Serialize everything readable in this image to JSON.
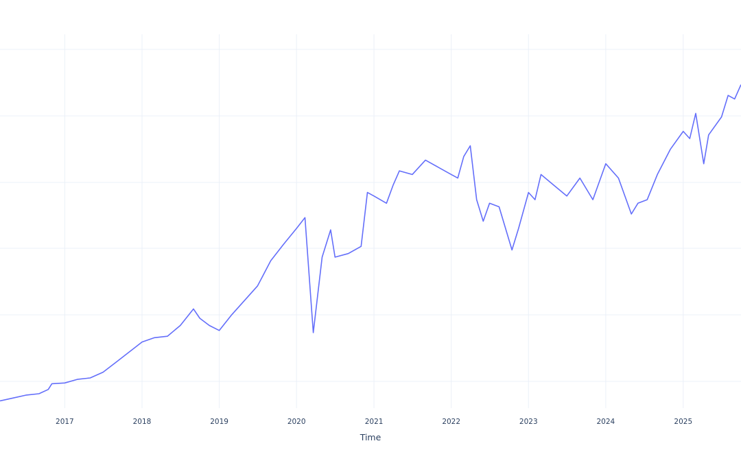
{
  "chart_data": {
    "type": "line",
    "title": "",
    "xlabel": "Time",
    "ylabel": "",
    "x_tick_labels": [
      "2017",
      "2018",
      "2019",
      "2020",
      "2021",
      "2022",
      "2023",
      "2024",
      "2025"
    ],
    "x_range": [
      "2016-03-01",
      "2025-10-01"
    ],
    "y_range": [
      0,
      520
    ],
    "grid": true,
    "legend": false,
    "colors": {
      "series": "#636efa",
      "grid": "#ebf0f8",
      "text": "#2a3f5f"
    },
    "series": [
      {
        "x": [
          "2016-03-01",
          "2016-05-01",
          "2016-07-01",
          "2016-09-01",
          "2016-10-15",
          "2016-11-01",
          "2017-01-01",
          "2017-03-01",
          "2017-05-01",
          "2017-07-01",
          "2017-09-01",
          "2017-11-01",
          "2018-01-01",
          "2018-03-01",
          "2018-05-01",
          "2018-07-01",
          "2018-09-01",
          "2018-10-01",
          "2018-11-15",
          "2019-01-01",
          "2019-03-01",
          "2019-05-01",
          "2019-07-01",
          "2019-09-01",
          "2019-11-01",
          "2020-01-01",
          "2020-02-10",
          "2020-03-20",
          "2020-05-01",
          "2020-06-10",
          "2020-07-01",
          "2020-09-01",
          "2020-11-01",
          "2020-12-01",
          "2021-01-01",
          "2021-03-01",
          "2021-04-01",
          "2021-05-01",
          "2021-07-01",
          "2021-09-01",
          "2021-11-01",
          "2022-01-01",
          "2022-02-01",
          "2022-03-01",
          "2022-04-01",
          "2022-05-01",
          "2022-06-01",
          "2022-07-01",
          "2022-08-15",
          "2022-10-15",
          "2022-11-15",
          "2023-01-01",
          "2023-02-01",
          "2023-03-01",
          "2023-05-01",
          "2023-07-01",
          "2023-09-01",
          "2023-11-01",
          "2024-01-01",
          "2024-03-01",
          "2024-05-01",
          "2024-06-01",
          "2024-07-15",
          "2024-09-01",
          "2024-11-01",
          "2025-01-01",
          "2025-02-01",
          "2025-03-01",
          "2025-04-08",
          "2025-05-01",
          "2025-07-01",
          "2025-08-01",
          "2025-09-01",
          "2025-10-01"
        ],
        "y": [
          10,
          14,
          18,
          20,
          26,
          34,
          35,
          40,
          42,
          50,
          64,
          78,
          92,
          98,
          100,
          115,
          138,
          125,
          115,
          108,
          130,
          150,
          170,
          205,
          228,
          250,
          265,
          105,
          210,
          248,
          210,
          215,
          225,
          300,
          295,
          285,
          310,
          330,
          325,
          345,
          335,
          325,
          320,
          350,
          365,
          290,
          260,
          285,
          280,
          220,
          250,
          300,
          290,
          325,
          310,
          295,
          320,
          290,
          340,
          320,
          270,
          285,
          290,
          325,
          360,
          385,
          375,
          410,
          340,
          380,
          405,
          435,
          430,
          450
        ]
      }
    ]
  }
}
